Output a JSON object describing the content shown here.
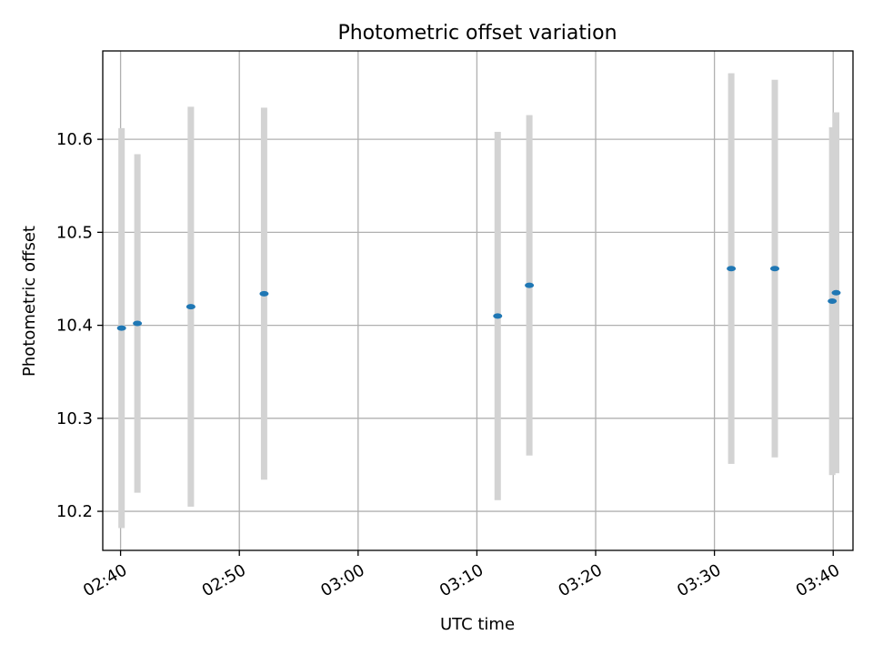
{
  "chart_data": {
    "type": "scatter",
    "title": "Photometric offset variation",
    "xlabel": "UTC time",
    "ylabel": "Photometric offset",
    "x_ticks": [
      "02:40",
      "02:50",
      "03:00",
      "03:10",
      "03:20",
      "03:30",
      "03:40"
    ],
    "y_ticks": [
      "10.2",
      "10.3",
      "10.4",
      "10.5",
      "10.6"
    ],
    "xlim": [
      "02:38:30",
      "03:41:40"
    ],
    "ylim": [
      10.158,
      10.695
    ],
    "grid": true,
    "colors": {
      "point": "#1f77b4",
      "errorbar": "#d3d3d3",
      "grid": "#b0b0b0"
    },
    "series": [
      {
        "points": [
          {
            "t": "02:40:05",
            "y": 10.397,
            "err": 0.215
          },
          {
            "t": "02:41:25",
            "y": 10.402,
            "err": 0.182
          },
          {
            "t": "02:45:55",
            "y": 10.42,
            "err": 0.215
          },
          {
            "t": "02:52:05",
            "y": 10.434,
            "err": 0.2
          },
          {
            "t": "03:11:45",
            "y": 10.41,
            "err": 0.198
          },
          {
            "t": "03:14:25",
            "y": 10.443,
            "err": 0.183
          },
          {
            "t": "03:31:25",
            "y": 10.461,
            "err": 0.21
          },
          {
            "t": "03:35:05",
            "y": 10.461,
            "err": 0.203
          },
          {
            "t": "03:39:55",
            "y": 10.426,
            "err": 0.187
          },
          {
            "t": "03:40:15",
            "y": 10.435,
            "err": 0.194
          }
        ]
      }
    ]
  }
}
